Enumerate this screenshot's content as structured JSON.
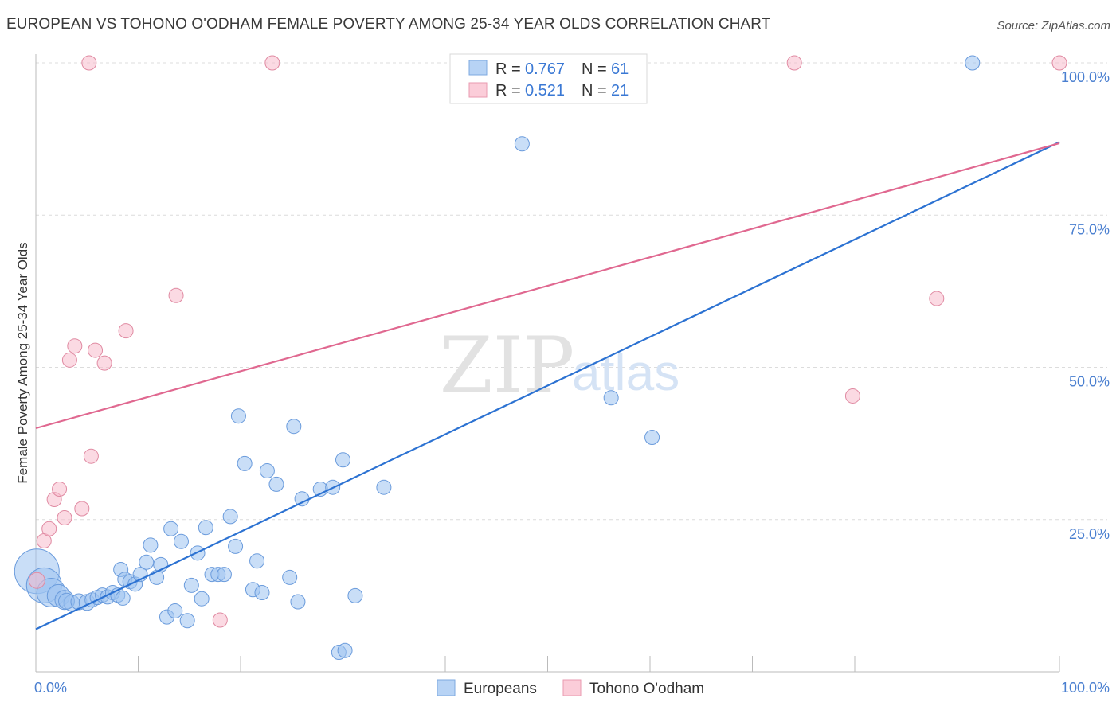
{
  "chart_data": {
    "type": "scatter",
    "title": "EUROPEAN VS TOHONO O'ODHAM FEMALE POVERTY AMONG 25-34 YEAR OLDS CORRELATION CHART",
    "source": "Source: ZipAtlas.com",
    "xlabel": "",
    "ylabel": "Female Poverty Among 25-34 Year Olds",
    "xlim": [
      0,
      100
    ],
    "ylim": [
      0,
      100
    ],
    "x_tick_labels": [
      "0.0%",
      "100.0%"
    ],
    "y_tick_labels": [
      "25.0%",
      "50.0%",
      "75.0%",
      "100.0%"
    ],
    "y_ticks": [
      25,
      50,
      75,
      100
    ],
    "grid": true,
    "watermark": [
      "ZIP",
      "atlas"
    ],
    "legend": {
      "position": "top-center",
      "entries": [
        {
          "r_label": "R =",
          "r_value": "0.767",
          "n_label": "N =",
          "n_value": "61"
        },
        {
          "r_label": "R =",
          "r_value": "0.521",
          "n_label": "N =",
          "n_value": "21"
        }
      ]
    },
    "series": [
      {
        "name": "Europeans",
        "color": "#9dc3f0",
        "stroke": "#6a9bdc",
        "line_color": "#2c72d2",
        "trend": {
          "x": [
            0,
            100
          ],
          "y": [
            7.0,
            87.0
          ]
        },
        "points": [
          [
            0.1,
            16.5,
            28
          ],
          [
            0.8,
            14.2,
            22
          ],
          [
            1.5,
            13.0,
            18
          ],
          [
            2.2,
            12.5,
            14
          ],
          [
            2.8,
            11.8,
            12
          ],
          [
            3.5,
            11.3,
            10
          ],
          [
            3.0,
            11.6,
            10
          ],
          [
            4.2,
            11.5,
            10
          ],
          [
            5.0,
            11.4,
            10
          ],
          [
            5.5,
            11.8,
            9
          ],
          [
            6.0,
            12.2,
            9
          ],
          [
            6.5,
            12.6,
            9
          ],
          [
            7.0,
            12.3,
            9
          ],
          [
            7.5,
            13.0,
            9
          ],
          [
            8.0,
            12.6,
            9
          ],
          [
            8.5,
            12.1,
            9
          ],
          [
            8.3,
            16.8,
            9
          ],
          [
            8.7,
            15.2,
            9
          ],
          [
            9.2,
            14.8,
            9
          ],
          [
            9.7,
            14.4,
            9
          ],
          [
            10.2,
            16.0,
            9
          ],
          [
            10.8,
            18.0,
            9
          ],
          [
            11.2,
            20.8,
            9
          ],
          [
            11.8,
            15.5,
            9
          ],
          [
            12.2,
            17.6,
            9
          ],
          [
            12.8,
            9.0,
            9
          ],
          [
            13.2,
            23.5,
            9
          ],
          [
            13.6,
            10.0,
            9
          ],
          [
            14.2,
            21.4,
            9
          ],
          [
            14.8,
            8.4,
            9
          ],
          [
            15.2,
            14.2,
            9
          ],
          [
            15.8,
            19.5,
            9
          ],
          [
            16.2,
            12.0,
            9
          ],
          [
            16.6,
            23.7,
            9
          ],
          [
            17.2,
            16.0,
            9
          ],
          [
            17.8,
            16.0,
            9
          ],
          [
            18.4,
            16.0,
            9
          ],
          [
            19.0,
            25.5,
            9
          ],
          [
            19.5,
            20.6,
            9
          ],
          [
            19.8,
            42.0,
            9
          ],
          [
            20.4,
            34.2,
            9
          ],
          [
            21.2,
            13.5,
            9
          ],
          [
            21.6,
            18.2,
            9
          ],
          [
            22.1,
            13.0,
            9
          ],
          [
            22.6,
            33.0,
            9
          ],
          [
            23.5,
            30.8,
            9
          ],
          [
            24.8,
            15.5,
            9
          ],
          [
            25.2,
            40.3,
            9
          ],
          [
            25.6,
            11.5,
            9
          ],
          [
            26.0,
            28.4,
            9
          ],
          [
            27.8,
            30.0,
            9
          ],
          [
            29.0,
            30.3,
            9
          ],
          [
            29.6,
            3.2,
            9
          ],
          [
            30.0,
            34.8,
            9
          ],
          [
            30.2,
            3.5,
            9
          ],
          [
            31.2,
            12.5,
            9
          ],
          [
            34.0,
            30.3,
            9
          ],
          [
            47.5,
            86.7,
            9
          ],
          [
            56.2,
            45.0,
            9
          ],
          [
            60.2,
            38.5,
            9
          ],
          [
            91.5,
            100.0,
            9
          ]
        ]
      },
      {
        "name": "Tohono O'odham",
        "color": "#f8bccc",
        "stroke": "#e08aa2",
        "line_color": "#e06890",
        "trend": {
          "x": [
            0,
            100
          ],
          "y": [
            40.0,
            86.8
          ]
        },
        "points": [
          [
            0.1,
            15.0,
            10
          ],
          [
            0.8,
            21.5,
            9
          ],
          [
            1.3,
            23.5,
            9
          ],
          [
            1.8,
            28.3,
            9
          ],
          [
            2.3,
            30.0,
            9
          ],
          [
            2.8,
            25.3,
            9
          ],
          [
            3.3,
            51.2,
            9
          ],
          [
            3.8,
            53.5,
            9
          ],
          [
            4.5,
            26.8,
            9
          ],
          [
            5.2,
            100.0,
            9
          ],
          [
            5.4,
            35.4,
            9
          ],
          [
            5.8,
            52.8,
            9
          ],
          [
            6.7,
            50.7,
            9
          ],
          [
            8.8,
            56.0,
            9
          ],
          [
            13.7,
            61.8,
            9
          ],
          [
            18.0,
            8.5,
            9
          ],
          [
            23.1,
            100.0,
            9
          ],
          [
            74.1,
            100.0,
            9
          ],
          [
            79.8,
            45.3,
            9
          ],
          [
            88.0,
            61.3,
            9
          ],
          [
            100.0,
            100.0,
            9
          ]
        ]
      }
    ]
  }
}
